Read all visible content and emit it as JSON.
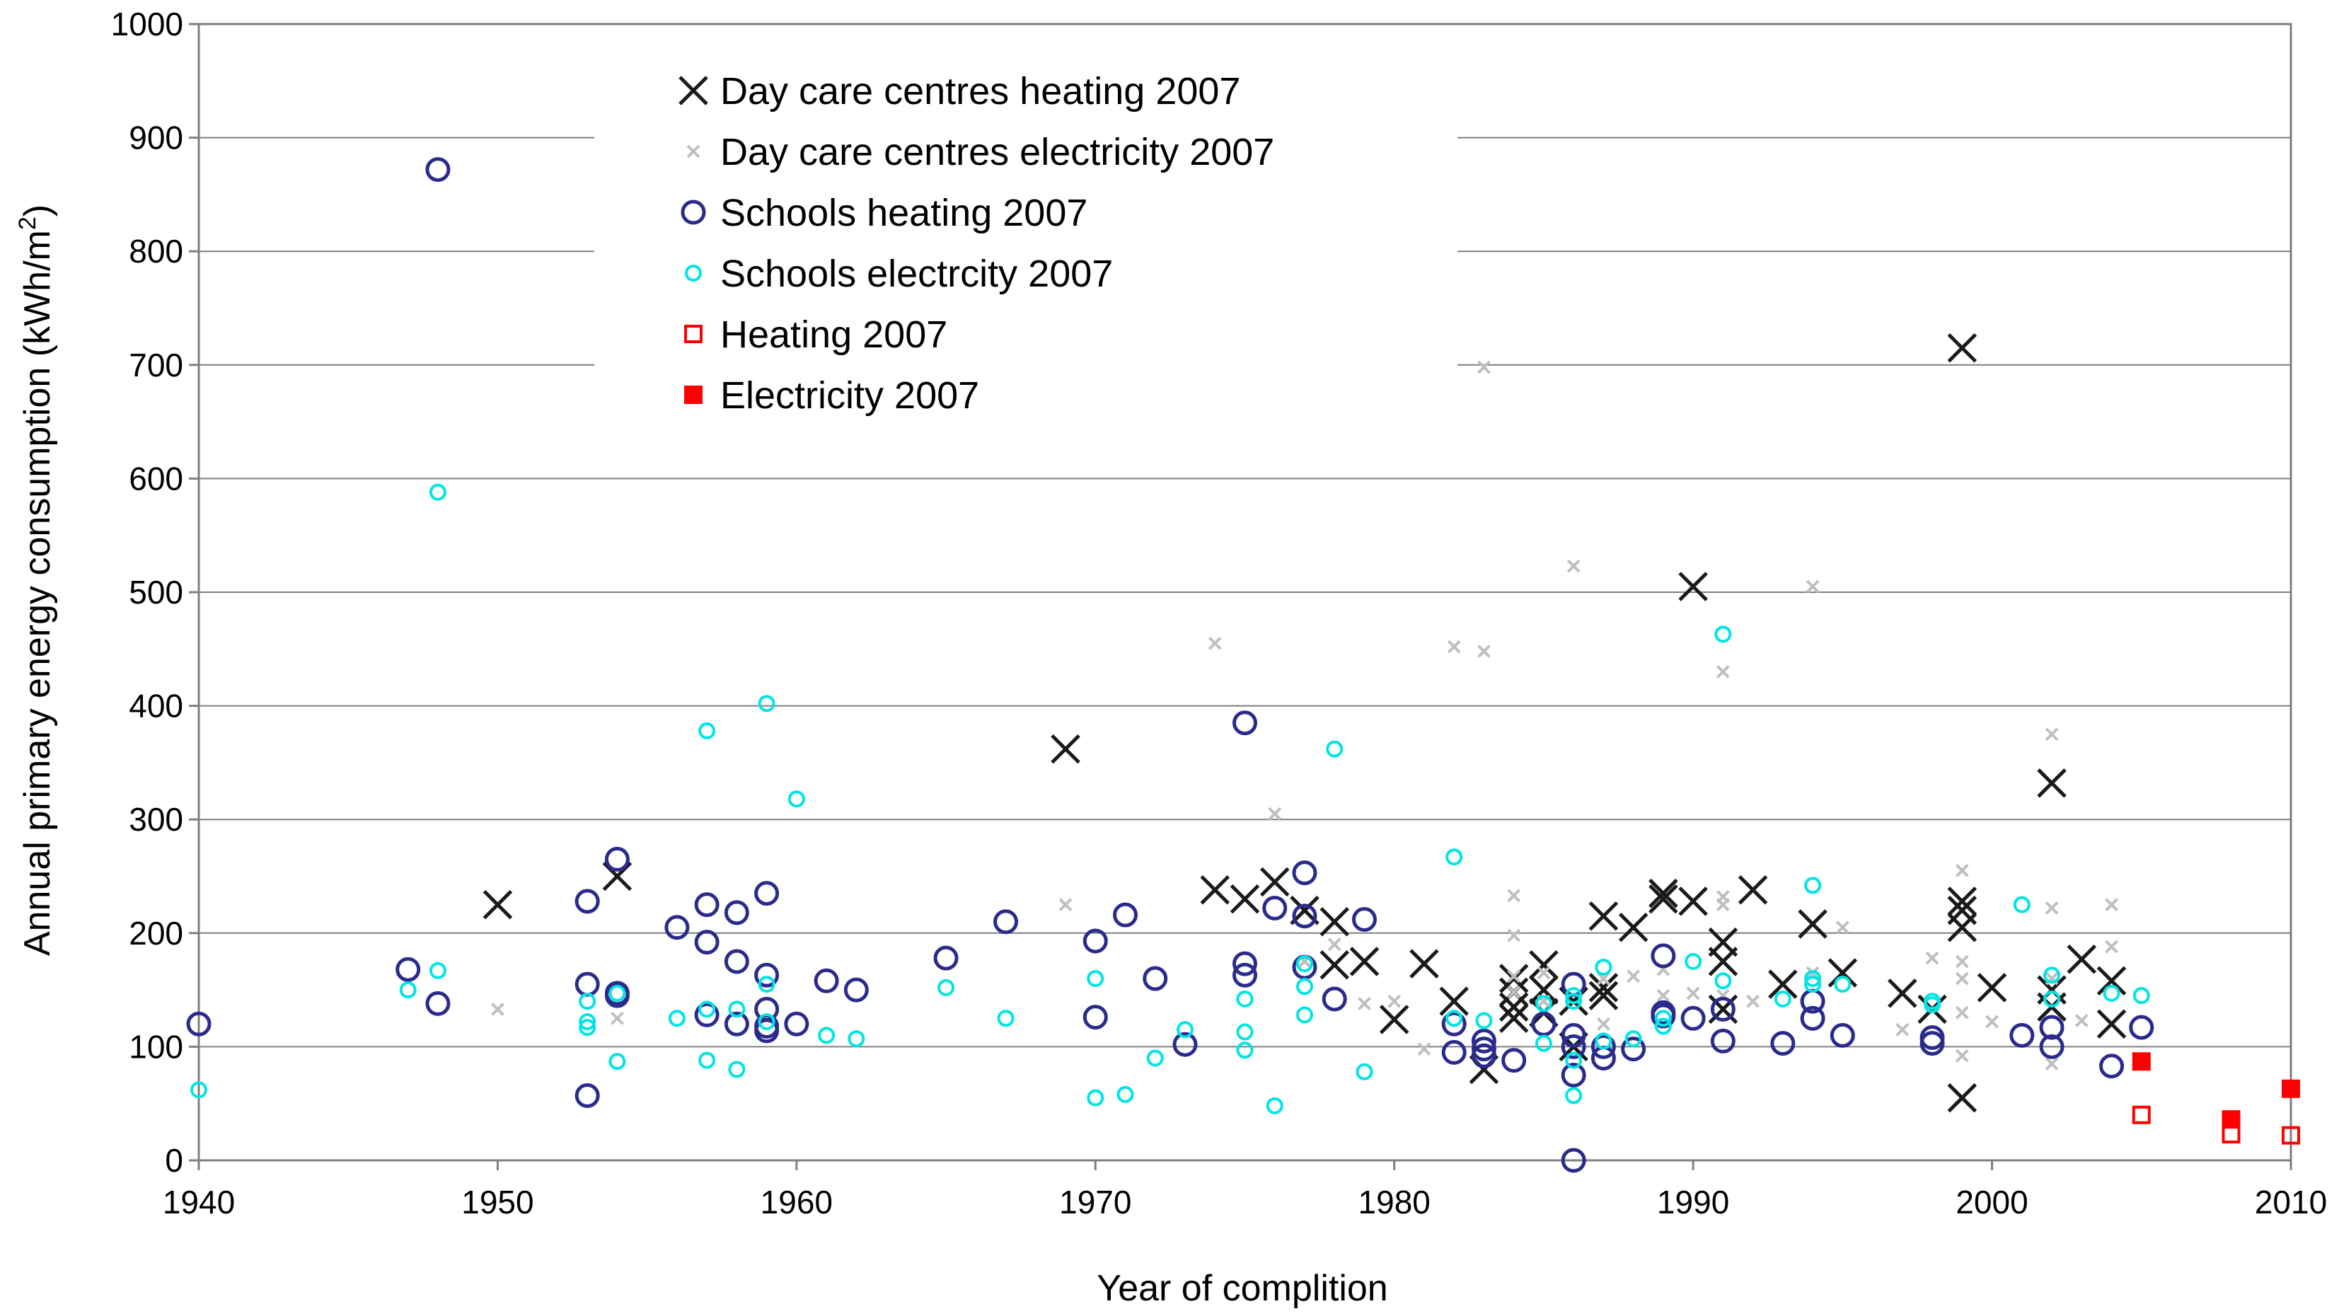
{
  "chart_data": {
    "type": "scatter",
    "title": "",
    "xlabel": "Year of complition",
    "ylabel": "Annual primary energy consumption (kWh/m",
    "ylabel_superscript": "2",
    "ylabel_close": ")",
    "xlim": [
      1940,
      2010
    ],
    "ylim": [
      0,
      1000
    ],
    "xticks": [
      1940,
      1950,
      1960,
      1970,
      1980,
      1990,
      2000,
      2010
    ],
    "yticks": [
      0,
      100,
      200,
      300,
      400,
      500,
      600,
      700,
      800,
      900,
      1000
    ],
    "grid": "horizontal",
    "legend_position": "top-center",
    "series": [
      {
        "name": "Day care centres heating 2007",
        "marker": "cross-large",
        "color": "#1a1a1a",
        "points": [
          [
            1950,
            225
          ],
          [
            1954,
            250
          ],
          [
            1969,
            362
          ],
          [
            1974,
            238
          ],
          [
            1975,
            230
          ],
          [
            1976,
            245
          ],
          [
            1977,
            220
          ],
          [
            1978,
            210
          ],
          [
            1978,
            172
          ],
          [
            1979,
            175
          ],
          [
            1980,
            124
          ],
          [
            1981,
            173
          ],
          [
            1982,
            140
          ],
          [
            1983,
            80
          ],
          [
            1984,
            125
          ],
          [
            1984,
            135
          ],
          [
            1984,
            148
          ],
          [
            1984,
            160
          ],
          [
            1985,
            130
          ],
          [
            1985,
            150
          ],
          [
            1985,
            172
          ],
          [
            1986,
            100
          ],
          [
            1986,
            140
          ],
          [
            1987,
            145
          ],
          [
            1987,
            152
          ],
          [
            1987,
            215
          ],
          [
            1988,
            205
          ],
          [
            1989,
            230
          ],
          [
            1989,
            235
          ],
          [
            1990,
            228
          ],
          [
            1990,
            505
          ],
          [
            1991,
            133
          ],
          [
            1991,
            175
          ],
          [
            1991,
            192
          ],
          [
            1992,
            238
          ],
          [
            1993,
            155
          ],
          [
            1994,
            208
          ],
          [
            1995,
            165
          ],
          [
            1997,
            147
          ],
          [
            1998,
            133
          ],
          [
            1999,
            55
          ],
          [
            1999,
            205
          ],
          [
            1999,
            220
          ],
          [
            1999,
            228
          ],
          [
            1999,
            715
          ],
          [
            2000,
            152
          ],
          [
            2002,
            135
          ],
          [
            2002,
            150
          ],
          [
            2002,
            332
          ],
          [
            2003,
            177
          ],
          [
            2004,
            120
          ],
          [
            2004,
            158
          ]
        ]
      },
      {
        "name": "Day care centres electricity 2007",
        "marker": "cross-small",
        "color": "#bfbfbf",
        "points": [
          [
            1950,
            133
          ],
          [
            1954,
            125
          ],
          [
            1969,
            225
          ],
          [
            1974,
            455
          ],
          [
            1976,
            305
          ],
          [
            1977,
            175
          ],
          [
            1978,
            190
          ],
          [
            1979,
            138
          ],
          [
            1980,
            140
          ],
          [
            1981,
            98
          ],
          [
            1982,
            452
          ],
          [
            1983,
            448
          ],
          [
            1983,
            698
          ],
          [
            1984,
            148
          ],
          [
            1984,
            162
          ],
          [
            1984,
            198
          ],
          [
            1984,
            233
          ],
          [
            1985,
            140
          ],
          [
            1985,
            165
          ],
          [
            1986,
            523
          ],
          [
            1987,
            120
          ],
          [
            1987,
            160
          ],
          [
            1988,
            162
          ],
          [
            1989,
            145
          ],
          [
            1989,
            168
          ],
          [
            1990,
            147
          ],
          [
            1991,
            145
          ],
          [
            1991,
            225
          ],
          [
            1991,
            232
          ],
          [
            1991,
            430
          ],
          [
            1992,
            140
          ],
          [
            1994,
            505
          ],
          [
            1994,
            165
          ],
          [
            1995,
            205
          ],
          [
            1997,
            115
          ],
          [
            1998,
            178
          ],
          [
            1999,
            92
          ],
          [
            1999,
            130
          ],
          [
            1999,
            160
          ],
          [
            1999,
            175
          ],
          [
            1999,
            255
          ],
          [
            2000,
            122
          ],
          [
            2002,
            85
          ],
          [
            2002,
            160
          ],
          [
            2002,
            222
          ],
          [
            2002,
            375
          ],
          [
            2003,
            123
          ],
          [
            2004,
            188
          ],
          [
            2004,
            225
          ]
        ]
      },
      {
        "name": "Schools heating 2007",
        "marker": "circle-large",
        "color": "#2b2b8c",
        "points": [
          [
            1940,
            120
          ],
          [
            1947,
            168
          ],
          [
            1948,
            138
          ],
          [
            1948,
            872
          ],
          [
            1953,
            57
          ],
          [
            1953,
            155
          ],
          [
            1953,
            228
          ],
          [
            1954,
            145
          ],
          [
            1954,
            147
          ],
          [
            1954,
            265
          ],
          [
            1956,
            205
          ],
          [
            1957,
            128
          ],
          [
            1957,
            192
          ],
          [
            1957,
            225
          ],
          [
            1958,
            120
          ],
          [
            1958,
            175
          ],
          [
            1958,
            218
          ],
          [
            1959,
            114
          ],
          [
            1959,
            118
          ],
          [
            1959,
            133
          ],
          [
            1959,
            163
          ],
          [
            1959,
            235
          ],
          [
            1960,
            120
          ],
          [
            1961,
            158
          ],
          [
            1962,
            150
          ],
          [
            1965,
            178
          ],
          [
            1967,
            210
          ],
          [
            1970,
            126
          ],
          [
            1970,
            193
          ],
          [
            1971,
            216
          ],
          [
            1972,
            160
          ],
          [
            1973,
            102
          ],
          [
            1975,
            163
          ],
          [
            1975,
            173
          ],
          [
            1975,
            385
          ],
          [
            1976,
            222
          ],
          [
            1977,
            170
          ],
          [
            1977,
            215
          ],
          [
            1977,
            253
          ],
          [
            1978,
            142
          ],
          [
            1979,
            212
          ],
          [
            1982,
            95
          ],
          [
            1982,
            120
          ],
          [
            1983,
            92
          ],
          [
            1983,
            98
          ],
          [
            1983,
            105
          ],
          [
            1984,
            88
          ],
          [
            1985,
            120
          ],
          [
            1986,
            0
          ],
          [
            1986,
            75
          ],
          [
            1986,
            100
          ],
          [
            1986,
            110
          ],
          [
            1986,
            155
          ],
          [
            1987,
            90
          ],
          [
            1987,
            100
          ],
          [
            1988,
            98
          ],
          [
            1989,
            127
          ],
          [
            1989,
            130
          ],
          [
            1989,
            180
          ],
          [
            1990,
            125
          ],
          [
            1991,
            105
          ],
          [
            1991,
            133
          ],
          [
            1993,
            103
          ],
          [
            1994,
            125
          ],
          [
            1994,
            140
          ],
          [
            1995,
            110
          ],
          [
            1998,
            103
          ],
          [
            1998,
            108
          ],
          [
            2001,
            110
          ],
          [
            2002,
            100
          ],
          [
            2002,
            117
          ],
          [
            2004,
            83
          ],
          [
            2005,
            117
          ]
        ]
      },
      {
        "name": "Schools electrcity 2007",
        "marker": "circle-small",
        "color": "#00e5e5",
        "points": [
          [
            1940,
            62
          ],
          [
            1947,
            150
          ],
          [
            1948,
            167
          ],
          [
            1948,
            588
          ],
          [
            1953,
            117
          ],
          [
            1953,
            122
          ],
          [
            1953,
            140
          ],
          [
            1954,
            87
          ],
          [
            1954,
            147
          ],
          [
            1956,
            125
          ],
          [
            1957,
            88
          ],
          [
            1957,
            133
          ],
          [
            1957,
            378
          ],
          [
            1958,
            80
          ],
          [
            1958,
            133
          ],
          [
            1959,
            122
          ],
          [
            1959,
            155
          ],
          [
            1959,
            402
          ],
          [
            1960,
            318
          ],
          [
            1961,
            110
          ],
          [
            1962,
            107
          ],
          [
            1965,
            152
          ],
          [
            1967,
            125
          ],
          [
            1970,
            55
          ],
          [
            1970,
            160
          ],
          [
            1971,
            58
          ],
          [
            1972,
            90
          ],
          [
            1973,
            115
          ],
          [
            1975,
            97
          ],
          [
            1975,
            113
          ],
          [
            1975,
            142
          ],
          [
            1976,
            48
          ],
          [
            1977,
            128
          ],
          [
            1977,
            153
          ],
          [
            1977,
            173
          ],
          [
            1978,
            362
          ],
          [
            1979,
            78
          ],
          [
            1982,
            125
          ],
          [
            1982,
            267
          ],
          [
            1983,
            123
          ],
          [
            1985,
            103
          ],
          [
            1985,
            138
          ],
          [
            1986,
            57
          ],
          [
            1986,
            88
          ],
          [
            1986,
            140
          ],
          [
            1986,
            145
          ],
          [
            1987,
            105
          ],
          [
            1987,
            170
          ],
          [
            1988,
            107
          ],
          [
            1989,
            118
          ],
          [
            1989,
            125
          ],
          [
            1990,
            175
          ],
          [
            1991,
            158
          ],
          [
            1991,
            463
          ],
          [
            1993,
            142
          ],
          [
            1994,
            155
          ],
          [
            1994,
            160
          ],
          [
            1994,
            242
          ],
          [
            1995,
            155
          ],
          [
            1998,
            137
          ],
          [
            1998,
            140
          ],
          [
            2001,
            225
          ],
          [
            2002,
            142
          ],
          [
            2002,
            163
          ],
          [
            2004,
            147
          ],
          [
            2005,
            145
          ]
        ]
      },
      {
        "name": "Heating 2007",
        "marker": "square-open",
        "color": "#ff0000",
        "points": [
          [
            2005,
            40
          ],
          [
            2008,
            23
          ],
          [
            2010,
            22
          ]
        ]
      },
      {
        "name": "Electricity 2007",
        "marker": "square-filled",
        "color": "#ff0000",
        "points": [
          [
            2005,
            87
          ],
          [
            2008,
            36
          ],
          [
            2010,
            63
          ]
        ]
      }
    ]
  }
}
